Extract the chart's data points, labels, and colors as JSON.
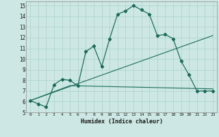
{
  "xlabel": "Humidex (Indice chaleur)",
  "xlim": [
    -0.5,
    23.5
  ],
  "ylim": [
    5,
    15.4
  ],
  "xticks": [
    0,
    1,
    2,
    3,
    4,
    5,
    6,
    7,
    8,
    9,
    10,
    11,
    12,
    13,
    14,
    15,
    16,
    17,
    18,
    19,
    20,
    21,
    22,
    23
  ],
  "yticks": [
    5,
    6,
    7,
    8,
    9,
    10,
    11,
    12,
    13,
    14,
    15
  ],
  "bg_color": "#cde8e4",
  "grid_color": "#b0d4ce",
  "line_color": "#1a6b5a",
  "curve1_x": [
    0,
    1,
    2,
    3,
    4,
    5,
    6,
    7,
    8,
    9,
    10,
    11,
    12,
    13,
    14,
    15,
    16,
    17,
    18,
    19,
    20,
    21,
    22,
    23
  ],
  "curve1_y": [
    6.1,
    5.8,
    5.5,
    7.6,
    8.1,
    8.0,
    7.5,
    10.7,
    11.2,
    9.3,
    11.9,
    14.2,
    14.5,
    15.0,
    14.6,
    14.2,
    12.2,
    12.3,
    11.9,
    9.8,
    8.5,
    7.0,
    7.0,
    7.0
  ],
  "curve2_x": [
    0,
    5,
    23
  ],
  "curve2_y": [
    6.1,
    7.5,
    7.2
  ],
  "curve3_x": [
    0,
    23
  ],
  "curve3_y": [
    6.1,
    12.2
  ]
}
